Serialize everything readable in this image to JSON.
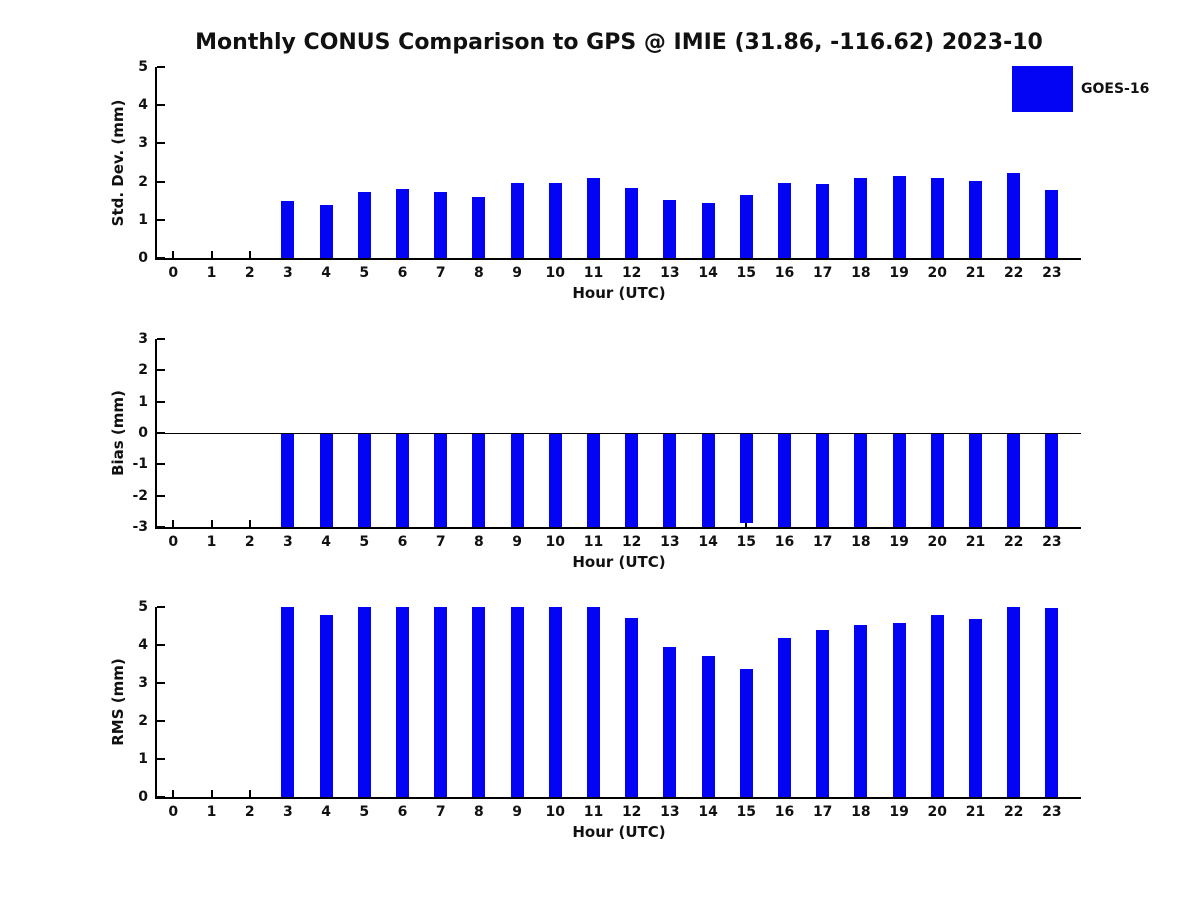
{
  "title": "Monthly CONUS Comparison to GPS @ IMIE (31.86, -116.62) 2023-10",
  "legend": {
    "label": "GOES-16",
    "color": "#0404f5"
  },
  "colors": {
    "bar": "#0404f5",
    "axis": "#000000",
    "text": "#111111",
    "background": "#ffffff"
  },
  "chart_data": [
    {
      "type": "bar",
      "title": "",
      "ylabel": "Std. Dev. (mm)",
      "xlabel": "Hour (UTC)",
      "ylim": [
        0,
        5
      ],
      "yticks": [
        5,
        4,
        3,
        2,
        1,
        0
      ],
      "baseline": 0,
      "zero_line": false,
      "grid": false,
      "legend_position": "upper right (legend shown on this subplot only)",
      "categories": [
        0,
        1,
        2,
        3,
        4,
        5,
        6,
        7,
        8,
        9,
        10,
        11,
        12,
        13,
        14,
        15,
        16,
        17,
        18,
        19,
        20,
        21,
        22,
        23
      ],
      "series": [
        {
          "name": "GOES-16",
          "values": [
            null,
            null,
            null,
            1.5,
            1.38,
            1.72,
            1.8,
            1.72,
            1.6,
            1.96,
            1.96,
            2.09,
            1.82,
            1.51,
            1.44,
            1.65,
            1.97,
            1.95,
            2.1,
            2.14,
            2.1,
            2.02,
            2.23,
            1.79
          ]
        }
      ]
    },
    {
      "type": "bar",
      "title": "",
      "ylabel": "Bias (mm)",
      "xlabel": "Hour (UTC)",
      "ylim": [
        -3,
        3
      ],
      "yticks": [
        3,
        2,
        1,
        0,
        -1,
        -2,
        -3
      ],
      "baseline": 0,
      "zero_line": true,
      "grid": false,
      "note": "all bars extend down to the -3 axis limit (clipped) except hour 15 which ends at about -2.87",
      "categories": [
        0,
        1,
        2,
        3,
        4,
        5,
        6,
        7,
        8,
        9,
        10,
        11,
        12,
        13,
        14,
        15,
        16,
        17,
        18,
        19,
        20,
        21,
        22,
        23
      ],
      "series": [
        {
          "name": "GOES-16",
          "values": [
            null,
            null,
            null,
            -3.0,
            -3.0,
            -3.0,
            -3.0,
            -3.0,
            -3.0,
            -3.0,
            -3.0,
            -3.0,
            -3.0,
            -3.0,
            -3.0,
            -2.87,
            -3.0,
            -3.0,
            -3.0,
            -3.0,
            -3.0,
            -3.0,
            -3.0,
            -3.0
          ]
        }
      ]
    },
    {
      "type": "bar",
      "title": "",
      "ylabel": "RMS (mm)",
      "xlabel": "Hour (UTC)",
      "ylim": [
        0,
        5
      ],
      "yticks": [
        5,
        4,
        3,
        2,
        1,
        0
      ],
      "baseline": 0,
      "zero_line": false,
      "grid": false,
      "note": "bars reaching 5.0 are clipped at the axis maximum",
      "categories": [
        0,
        1,
        2,
        3,
        4,
        5,
        6,
        7,
        8,
        9,
        10,
        11,
        12,
        13,
        14,
        15,
        16,
        17,
        18,
        19,
        20,
        21,
        22,
        23
      ],
      "series": [
        {
          "name": "GOES-16",
          "values": [
            null,
            null,
            null,
            5.0,
            4.78,
            5.0,
            5.0,
            5.0,
            5.0,
            5.0,
            5.0,
            5.0,
            4.71,
            3.94,
            3.72,
            3.38,
            4.18,
            4.4,
            4.52,
            4.59,
            4.8,
            4.68,
            5.0,
            4.97
          ]
        }
      ]
    }
  ]
}
